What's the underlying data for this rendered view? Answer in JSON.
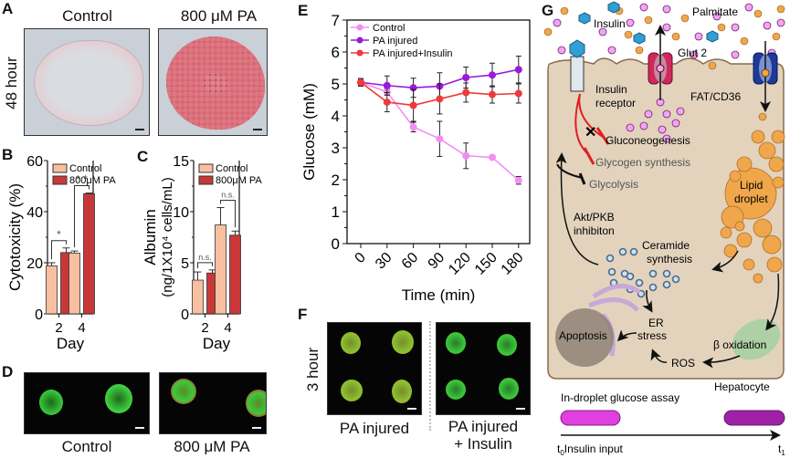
{
  "panels": {
    "A": {
      "label": "A",
      "row_label": "48 hour",
      "cols": [
        "Control",
        "800 μM PA"
      ]
    },
    "B": {
      "label": "B"
    },
    "C": {
      "label": "C"
    },
    "D": {
      "label": "D",
      "cols": [
        "Control",
        "800 μM PA"
      ]
    },
    "E": {
      "label": "E"
    },
    "F": {
      "label": "F",
      "row_label": "3 hour",
      "cols": [
        "PA injured",
        "PA injured",
        "+ Insulin"
      ]
    },
    "G": {
      "label": "G",
      "texts": {
        "insulin": "Insulin",
        "palmitate": "Palmitate",
        "glut2": "Glut 2",
        "fat": "FAT/CD36",
        "receptor1": "Insulin",
        "receptor2": "receptor",
        "gluconeo": "Gluconeogenesis",
        "glycogen": "Glycogen synthesis",
        "glycolysis": "Glycolysis",
        "akt1": "Akt/PKB",
        "akt2": "inhibiton",
        "lipid1": "Lipid",
        "lipid2": "droplet",
        "ceramide1": "Ceramide",
        "ceramide2": "synthesis",
        "er1": "ER",
        "er2": "stress",
        "apoptosis": "Apoptosis",
        "beta": "β oxidation",
        "ros": "ROS",
        "hepatocyte": "Hepatocyte",
        "assay": "In-droplet glucose assay",
        "t0": "t",
        "t0sub": "0",
        "insulin_input": "Insulin input",
        "t1": "t",
        "t1sub": "1"
      },
      "colors": {
        "cell": "#e3d3bd",
        "cell_border": "#8a6a4a",
        "palmitate": "#f0a64a",
        "glucose": "#f2a6f2",
        "insulin": "#2f9fd6",
        "glut2": "#d0285a",
        "fat": "#1d3a9a",
        "red": "#e02020",
        "bar1": "#e040e0",
        "bar2": "#a020a8"
      }
    }
  },
  "chart_data": [
    {
      "id": "B",
      "type": "bar",
      "categories": [
        "2",
        "4"
      ],
      "series": [
        {
          "name": "Control",
          "values": [
            18.8,
            23.8
          ],
          "errors": [
            1.2,
            0.8
          ],
          "color": "#f8c0a0"
        },
        {
          "name": "800μM PA",
          "values": [
            24.0,
            47.0
          ],
          "errors": [
            1.8,
            0.3
          ],
          "color": "#c83838"
        }
      ],
      "significance": [
        "*",
        "* *"
      ],
      "xlabel": "Day",
      "ylabel": "Cytotoxicity (%)",
      "ylim": [
        0,
        60
      ],
      "yticks": [
        0,
        20,
        40,
        60
      ],
      "legend": "top-left"
    },
    {
      "id": "C",
      "type": "bar",
      "categories": [
        "2",
        "4"
      ],
      "series": [
        {
          "name": "Control",
          "values": [
            3.3,
            8.7
          ],
          "errors": [
            0.8,
            1.7
          ],
          "color": "#f8c0a0"
        },
        {
          "name": "800μM PA",
          "values": [
            4.0,
            7.7
          ],
          "errors": [
            0.3,
            0.4
          ],
          "color": "#c83838"
        }
      ],
      "significance": [
        "n.s.",
        "n.s."
      ],
      "xlabel": "Day",
      "ylabel": "Albumin",
      "ylabel2": "(ng/1X10⁴ cells/mL)",
      "ylim": [
        0,
        15
      ],
      "yticks": [
        0,
        5,
        10,
        15
      ],
      "legend": "top-left"
    },
    {
      "id": "E",
      "type": "line",
      "x": [
        0,
        30,
        60,
        90,
        120,
        150,
        180
      ],
      "series": [
        {
          "name": "Control",
          "values": [
            5.05,
            4.75,
            3.65,
            3.28,
            2.75,
            2.7,
            1.98
          ],
          "errors": [
            0.1,
            0.1,
            0.15,
            0.55,
            0.4,
            0.05,
            0.12
          ],
          "color": "#f28ef2"
        },
        {
          "name": "PA injured",
          "values": [
            5.05,
            4.95,
            4.88,
            4.93,
            5.2,
            5.28,
            5.45
          ],
          "errors": [
            0.12,
            0.3,
            0.3,
            0.42,
            0.33,
            0.37,
            0.42
          ],
          "color": "#9a1ad8"
        },
        {
          "name": "PA injured+Insulin",
          "values": [
            5.05,
            4.43,
            4.33,
            4.53,
            4.73,
            4.67,
            4.7
          ],
          "errors": [
            0.12,
            0.3,
            0.5,
            0.47,
            0.3,
            0.27,
            0.3
          ],
          "color": "#ee3a3a"
        }
      ],
      "xlabel": "Time (min)",
      "ylabel": "Glucose (mM)",
      "xticks": [
        "0",
        "30",
        "60",
        "90",
        "120",
        "150",
        "180"
      ],
      "ylim": [
        0,
        7
      ],
      "yticks": [
        0,
        1,
        2,
        3,
        4,
        5,
        6,
        7
      ],
      "legend": "top-left"
    }
  ]
}
